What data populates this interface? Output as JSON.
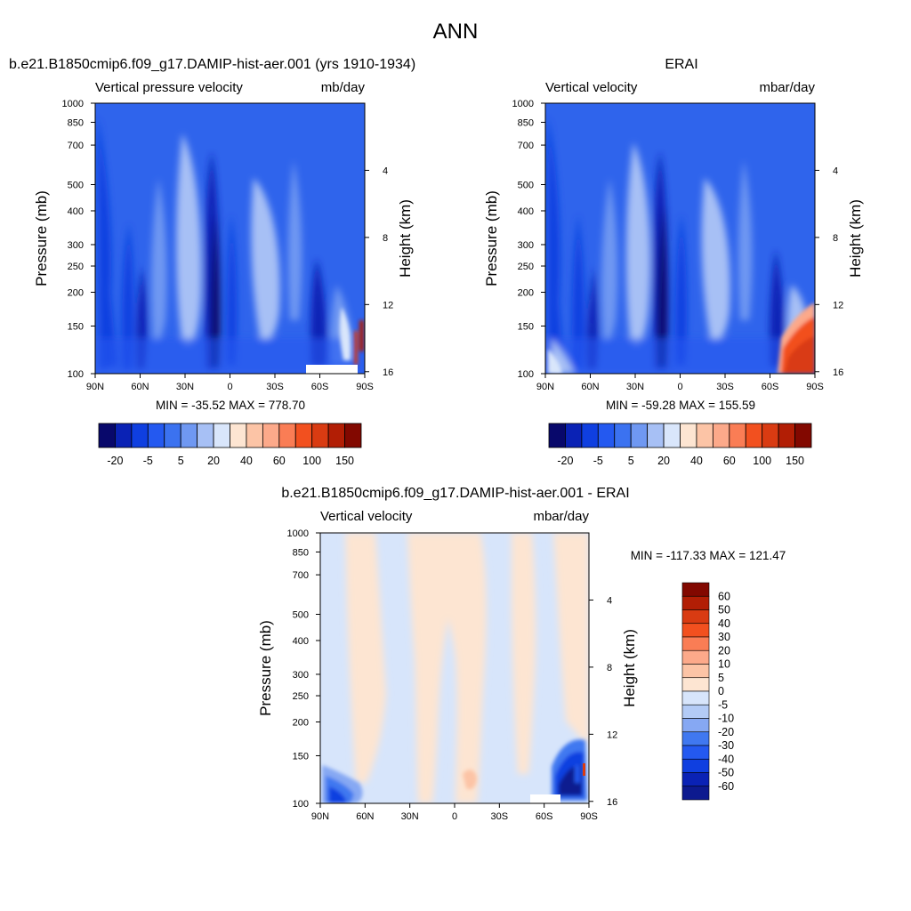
{
  "figure": {
    "title": "ANN"
  },
  "colors": {
    "scale": [
      "#08086b",
      "#0a22b5",
      "#0f3fe0",
      "#2459f0",
      "#3b72f0",
      "#6f98f2",
      "#a7c0f5",
      "#d9e6fb",
      "#fde5d2",
      "#fcc4a6",
      "#fca98a",
      "#fa7d55",
      "#f2501f",
      "#d93b12",
      "#b21e05",
      "#820800"
    ],
    "diff_scale": [
      "#0d1a8f",
      "#0a22b5",
      "#0f3fe0",
      "#2459f0",
      "#4078f0",
      "#86a8f3",
      "#b3cbf6",
      "#d7e5fb",
      "#fde5d2",
      "#fcc4a6",
      "#fca98a",
      "#fa7d55",
      "#f2501f",
      "#d93b12",
      "#b21e05",
      "#820800"
    ]
  },
  "chart_data": [
    {
      "type": "heatmap",
      "title": "b.e21.B1850cmip6.f09_g17.DAMIP-hist-aer.001 (yrs 1910-1934)",
      "left_label": "Vertical pressure velocity",
      "right_label": "mb/day",
      "xlabel": "",
      "ylabel": "Pressure (mb)",
      "ylabel_right": "Height (km)",
      "x_ticks": [
        "90N",
        "60N",
        "30N",
        "0",
        "30S",
        "60S",
        "90S"
      ],
      "x_values": [
        90,
        60,
        30,
        0,
        -30,
        -60,
        -90
      ],
      "xlim": [
        90,
        -90
      ],
      "y_ticks": [
        "100",
        "150",
        "200",
        "250",
        "300",
        "400",
        "500",
        "700",
        "850",
        "1000"
      ],
      "y_values": [
        100,
        150,
        200,
        250,
        300,
        400,
        500,
        700,
        850,
        1000
      ],
      "ylim": [
        1000,
        100
      ],
      "y_scale": "log",
      "height_ticks": [
        "16",
        "12",
        "8",
        "4"
      ],
      "height_values": [
        16,
        12,
        8,
        4
      ],
      "min_max_text": "MIN = -35.52  MAX = 778.70",
      "colorbar_orientation": "horizontal",
      "colorbar_labels": [
        "-20",
        "-5",
        "5",
        "20",
        "40",
        "60",
        "100",
        "150"
      ],
      "min": -35.52,
      "max": 778.7
    },
    {
      "type": "heatmap",
      "title": "ERAI",
      "left_label": "Vertical velocity",
      "right_label": "mbar/day",
      "xlabel": "",
      "ylabel": "Pressure (mb)",
      "ylabel_right": "Height (km)",
      "x_ticks": [
        "90N",
        "60N",
        "30N",
        "0",
        "30S",
        "60S",
        "90S"
      ],
      "x_values": [
        90,
        60,
        30,
        0,
        -30,
        -60,
        -90
      ],
      "xlim": [
        90,
        -90
      ],
      "y_ticks": [
        "100",
        "150",
        "200",
        "250",
        "300",
        "400",
        "500",
        "700",
        "850",
        "1000"
      ],
      "y_values": [
        100,
        150,
        200,
        250,
        300,
        400,
        500,
        700,
        850,
        1000
      ],
      "ylim": [
        1000,
        100
      ],
      "y_scale": "log",
      "height_ticks": [
        "16",
        "12",
        "8",
        "4"
      ],
      "height_values": [
        16,
        12,
        8,
        4
      ],
      "min_max_text": "MIN = -59.28  MAX = 155.59",
      "colorbar_orientation": "horizontal",
      "colorbar_labels": [
        "-20",
        "-5",
        "5",
        "20",
        "40",
        "60",
        "100",
        "150"
      ],
      "min": -59.28,
      "max": 155.59
    },
    {
      "type": "heatmap",
      "title": "b.e21.B1850cmip6.f09_g17.DAMIP-hist-aer.001 - ERAI",
      "left_label": "Vertical velocity",
      "right_label": "mbar/day",
      "xlabel": "",
      "ylabel": "Pressure (mb)",
      "ylabel_right": "Height (km)",
      "x_ticks": [
        "90N",
        "60N",
        "30N",
        "0",
        "30S",
        "60S",
        "90S"
      ],
      "x_values": [
        90,
        60,
        30,
        0,
        -30,
        -60,
        -90
      ],
      "xlim": [
        90,
        -90
      ],
      "y_ticks": [
        "100",
        "150",
        "200",
        "250",
        "300",
        "400",
        "500",
        "700",
        "850",
        "1000"
      ],
      "y_values": [
        100,
        150,
        200,
        250,
        300,
        400,
        500,
        700,
        850,
        1000
      ],
      "ylim": [
        1000,
        100
      ],
      "y_scale": "log",
      "height_ticks": [
        "16",
        "12",
        "8",
        "4"
      ],
      "height_values": [
        16,
        12,
        8,
        4
      ],
      "min_max_text": "MIN = -117.33  MAX = 121.47",
      "colorbar_orientation": "vertical",
      "colorbar_labels": [
        "60",
        "50",
        "40",
        "30",
        "20",
        "10",
        "5",
        "0",
        "-5",
        "-10",
        "-20",
        "-30",
        "-40",
        "-50",
        "-60"
      ],
      "min": -117.33,
      "max": 121.47
    }
  ]
}
